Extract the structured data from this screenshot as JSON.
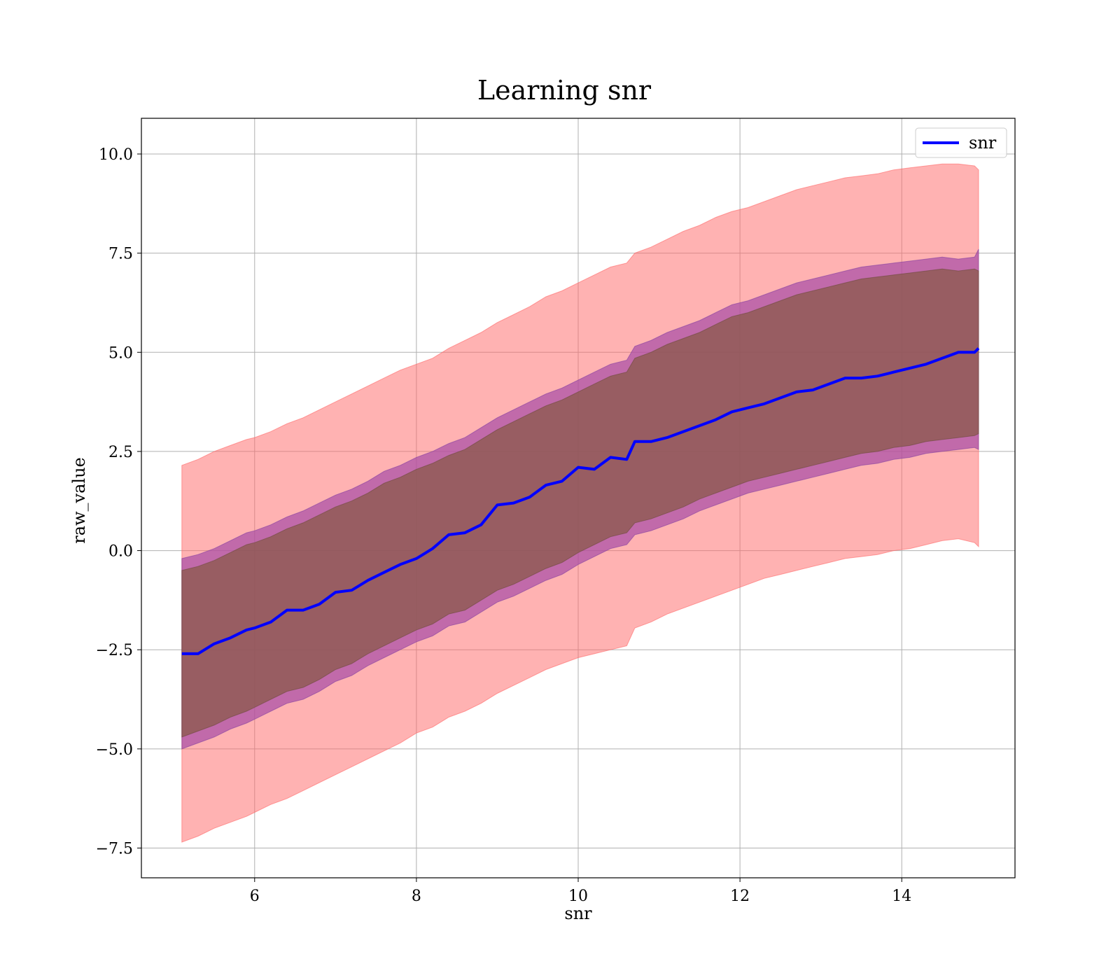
{
  "chart_data": {
    "type": "line",
    "title": "Learning snr",
    "xlabel": "snr",
    "ylabel": "raw_value",
    "xlim": [
      4.6,
      15.4
    ],
    "ylim": [
      -8.25,
      10.9
    ],
    "xticks": [
      6,
      8,
      10,
      12,
      14
    ],
    "xtick_labels": [
      "6",
      "8",
      "10",
      "12",
      "14"
    ],
    "yticks": [
      -7.5,
      -5.0,
      -2.5,
      0.0,
      2.5,
      5.0,
      7.5,
      10.0
    ],
    "ytick_labels": [
      "−7.5",
      "−5.0",
      "−2.5",
      "0.0",
      "2.5",
      "5.0",
      "7.5",
      "10.0"
    ],
    "grid": true,
    "legend_position": "top-right",
    "series": [
      {
        "name": "snr",
        "color": "#0000ff",
        "x": [
          5.1,
          5.3,
          5.5,
          5.7,
          5.9,
          6.0,
          6.2,
          6.4,
          6.6,
          6.8,
          7.0,
          7.2,
          7.4,
          7.6,
          7.8,
          8.0,
          8.2,
          8.4,
          8.6,
          8.8,
          9.0,
          9.2,
          9.4,
          9.6,
          9.8,
          10.0,
          10.2,
          10.4,
          10.6,
          10.7,
          10.9,
          11.1,
          11.3,
          11.5,
          11.7,
          11.9,
          12.1,
          12.3,
          12.5,
          12.7,
          12.9,
          13.1,
          13.3,
          13.5,
          13.7,
          13.9,
          14.1,
          14.3,
          14.5,
          14.7,
          14.9,
          14.95
        ],
        "y": [
          -2.6,
          -2.6,
          -2.35,
          -2.2,
          -2.0,
          -1.95,
          -1.8,
          -1.5,
          -1.5,
          -1.35,
          -1.05,
          -1.0,
          -0.75,
          -0.55,
          -0.35,
          -0.2,
          0.05,
          0.4,
          0.45,
          0.65,
          1.15,
          1.2,
          1.35,
          1.65,
          1.75,
          2.1,
          2.05,
          2.35,
          2.3,
          2.75,
          2.75,
          2.85,
          3.0,
          3.15,
          3.3,
          3.5,
          3.6,
          3.7,
          3.85,
          4.0,
          4.05,
          4.2,
          4.35,
          4.35,
          4.4,
          4.5,
          4.6,
          4.7,
          4.85,
          5.0,
          5.0,
          5.1
        ],
        "inner_band_lower": [
          -4.7,
          -4.55,
          -4.4,
          -4.2,
          -4.05,
          -3.95,
          -3.75,
          -3.55,
          -3.45,
          -3.25,
          -3.0,
          -2.85,
          -2.6,
          -2.4,
          -2.2,
          -2.0,
          -1.85,
          -1.6,
          -1.5,
          -1.25,
          -1.0,
          -0.85,
          -0.65,
          -0.45,
          -0.3,
          -0.05,
          0.15,
          0.35,
          0.45,
          0.7,
          0.8,
          0.95,
          1.1,
          1.3,
          1.45,
          1.6,
          1.75,
          1.85,
          1.95,
          2.05,
          2.15,
          2.25,
          2.35,
          2.45,
          2.5,
          2.6,
          2.65,
          2.75,
          2.8,
          2.85,
          2.9,
          2.95
        ],
        "inner_band_upper": [
          -0.5,
          -0.4,
          -0.25,
          -0.05,
          0.15,
          0.2,
          0.35,
          0.55,
          0.7,
          0.9,
          1.1,
          1.25,
          1.45,
          1.7,
          1.85,
          2.05,
          2.2,
          2.4,
          2.55,
          2.8,
          3.05,
          3.25,
          3.45,
          3.65,
          3.8,
          4.0,
          4.2,
          4.4,
          4.5,
          4.85,
          5.0,
          5.2,
          5.35,
          5.5,
          5.7,
          5.9,
          6.0,
          6.15,
          6.3,
          6.45,
          6.55,
          6.65,
          6.75,
          6.85,
          6.9,
          6.95,
          7.0,
          7.05,
          7.1,
          7.05,
          7.1,
          7.05
        ],
        "middle_band_lower": [
          -5.0,
          -4.85,
          -4.7,
          -4.5,
          -4.35,
          -4.25,
          -4.05,
          -3.85,
          -3.75,
          -3.55,
          -3.3,
          -3.15,
          -2.9,
          -2.7,
          -2.5,
          -2.3,
          -2.15,
          -1.9,
          -1.8,
          -1.55,
          -1.3,
          -1.15,
          -0.95,
          -0.75,
          -0.6,
          -0.35,
          -0.15,
          0.05,
          0.15,
          0.4,
          0.5,
          0.65,
          0.8,
          1.0,
          1.15,
          1.3,
          1.45,
          1.55,
          1.65,
          1.75,
          1.85,
          1.95,
          2.05,
          2.15,
          2.2,
          2.3,
          2.35,
          2.45,
          2.5,
          2.55,
          2.6,
          2.55
        ],
        "middle_band_upper": [
          -0.2,
          -0.1,
          0.05,
          0.25,
          0.45,
          0.5,
          0.65,
          0.85,
          1.0,
          1.2,
          1.4,
          1.55,
          1.75,
          2.0,
          2.15,
          2.35,
          2.5,
          2.7,
          2.85,
          3.1,
          3.35,
          3.55,
          3.75,
          3.95,
          4.1,
          4.3,
          4.5,
          4.7,
          4.8,
          5.15,
          5.3,
          5.5,
          5.65,
          5.8,
          6.0,
          6.2,
          6.3,
          6.45,
          6.6,
          6.75,
          6.85,
          6.95,
          7.05,
          7.15,
          7.2,
          7.25,
          7.3,
          7.35,
          7.4,
          7.35,
          7.4,
          7.6
        ],
        "outer_band_lower": [
          -7.35,
          -7.2,
          -7.0,
          -6.85,
          -6.7,
          -6.6,
          -6.4,
          -6.25,
          -6.05,
          -5.85,
          -5.65,
          -5.45,
          -5.25,
          -5.05,
          -4.85,
          -4.6,
          -4.45,
          -4.2,
          -4.05,
          -3.85,
          -3.6,
          -3.4,
          -3.2,
          -3.0,
          -2.85,
          -2.7,
          -2.6,
          -2.5,
          -2.4,
          -1.95,
          -1.8,
          -1.6,
          -1.45,
          -1.3,
          -1.15,
          -1.0,
          -0.85,
          -0.7,
          -0.6,
          -0.5,
          -0.4,
          -0.3,
          -0.2,
          -0.15,
          -0.1,
          0.0,
          0.05,
          0.15,
          0.25,
          0.3,
          0.2,
          0.1
        ],
        "outer_band_upper": [
          2.15,
          2.3,
          2.5,
          2.65,
          2.8,
          2.85,
          3.0,
          3.2,
          3.35,
          3.55,
          3.75,
          3.95,
          4.15,
          4.35,
          4.55,
          4.7,
          4.85,
          5.1,
          5.3,
          5.5,
          5.75,
          5.95,
          6.15,
          6.4,
          6.55,
          6.75,
          6.95,
          7.15,
          7.25,
          7.5,
          7.65,
          7.85,
          8.05,
          8.2,
          8.4,
          8.55,
          8.65,
          8.8,
          8.95,
          9.1,
          9.2,
          9.3,
          9.4,
          9.45,
          9.5,
          9.6,
          9.65,
          9.7,
          9.75,
          9.75,
          9.7,
          9.6
        ]
      }
    ],
    "colors": {
      "outer_band": "#ff6666",
      "middle_band": "#a64ca6",
      "inner_band": "#8a5a4a",
      "line": "#0000ff",
      "grid": "#b0b0b0"
    }
  }
}
